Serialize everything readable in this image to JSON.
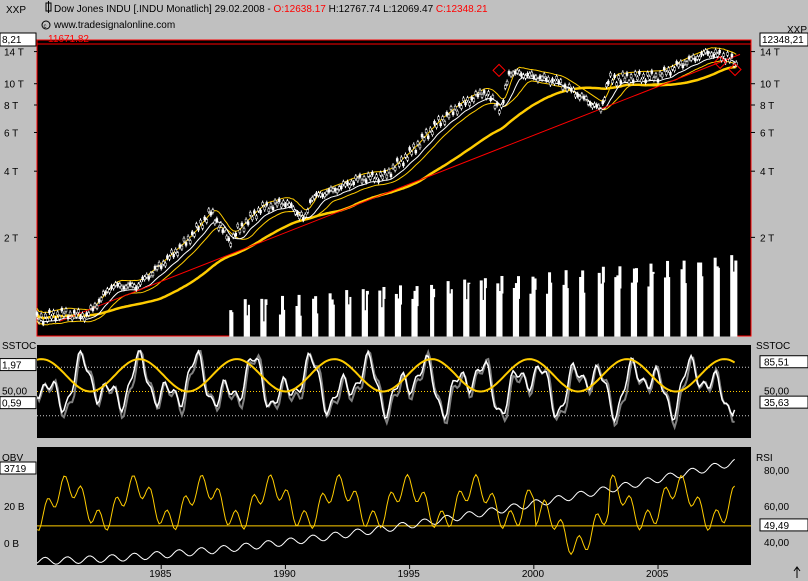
{
  "window": {
    "xxp_left": "XXP",
    "xxp_right": "XXP",
    "title_prefix": "Dow Jones INDU [.INDU  Monatlich] 29.02.2008 - ",
    "title_open": "O:12638.17",
    "title_hl": " H:12767.74 L:12069.47 ",
    "title_close": "C:12348.21",
    "source": "www.tradesignalonline.com",
    "trendline_label": "11671.82",
    "left_value_box": "8,21",
    "right_value_box": "12348,21"
  },
  "colors": {
    "background": "#000000",
    "frame": "#c0c0c0",
    "line_red": "#ff0000",
    "yellow": "#ffcc00",
    "white": "#ffffff",
    "gray": "#808080"
  },
  "panels": {
    "price": {
      "y_ticks_left": [
        "14 T",
        "10 T",
        "8 T",
        "6 T",
        "4 T",
        "2 T"
      ],
      "y_ticks_right": [
        "14 T",
        "10 T",
        "8 T",
        "6 T",
        "4 T",
        "2 T"
      ]
    },
    "sstoc": {
      "title_left": "SSTOC",
      "title_right": "SSTOC",
      "left_values": [
        "1,97",
        "50,00",
        "0,59"
      ],
      "right_values": [
        "85,51",
        "50,00",
        "35,63"
      ]
    },
    "obv": {
      "title_left": "OBV",
      "title_right": "RSI",
      "left_values": [
        "3719",
        "20 B",
        "0 B"
      ],
      "right_values": [
        "80,00",
        "60,00",
        "49,49",
        "40,00"
      ]
    }
  },
  "x_axis": {
    "labels": [
      "1985",
      "1990",
      "1995",
      "2000",
      "2005"
    ]
  },
  "chart_data": [
    {
      "type": "line",
      "title": "Dow Jones INDU [.INDU  Monatlich]",
      "scale": "log",
      "x": [
        1980,
        1981,
        1982,
        1983,
        1984,
        1985,
        1986,
        1987,
        1987.8,
        1988,
        1989,
        1990,
        1990.8,
        1991,
        1992,
        1993,
        1994,
        1995,
        1996,
        1997,
        1998,
        1998.7,
        1999,
        2000,
        2001,
        2002.7,
        2003,
        2004,
        2005,
        2006,
        2007,
        2007.8,
        2008.15
      ],
      "series": [
        {
          "name": "INDU",
          "values": [
            850,
            900,
            880,
            1200,
            1200,
            1500,
            1900,
            2600,
            1900,
            2100,
            2700,
            2900,
            2400,
            3000,
            3300,
            3700,
            3800,
            4800,
            6400,
            7900,
            9200,
            7600,
            11300,
            10800,
            10200,
            7600,
            10400,
            10700,
            10800,
            12400,
            13900,
            13200,
            12348
          ]
        }
      ],
      "ylim": [
        750,
        15000
      ],
      "horizontal_line": 11671.82
    },
    {
      "type": "line",
      "title": "SSTOC",
      "ylim": [
        0,
        100
      ],
      "reference_lines": [
        50,
        80,
        20
      ],
      "last_values": [
        85.51,
        35.63
      ]
    },
    {
      "type": "line",
      "title": "OBV / RSI",
      "ylim": [
        30,
        90
      ],
      "reference_line": 49.49,
      "last_values": [
        49.49
      ]
    }
  ]
}
